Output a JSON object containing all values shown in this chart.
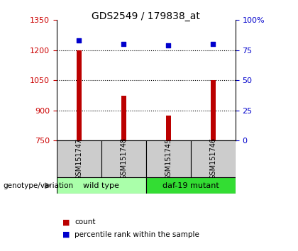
{
  "title": "GDS2549 / 179838_at",
  "samples": [
    "GSM151747",
    "GSM151748",
    "GSM151745",
    "GSM151746"
  ],
  "counts": [
    1200,
    975,
    875,
    1050
  ],
  "percentiles": [
    83,
    80,
    79,
    80
  ],
  "ylim_left": [
    750,
    1350
  ],
  "ylim_right": [
    0,
    100
  ],
  "yticks_left": [
    750,
    900,
    1050,
    1200,
    1350
  ],
  "yticks_right": [
    0,
    25,
    50,
    75,
    100
  ],
  "ytick_labels_right": [
    "0",
    "25",
    "50",
    "75",
    "100%"
  ],
  "bar_color": "#bb0000",
  "dot_color": "#0000cc",
  "bar_width": 0.12,
  "groups": [
    {
      "label": "wild type",
      "indices": [
        0,
        1
      ],
      "color": "#aaffaa"
    },
    {
      "label": "daf-19 mutant",
      "indices": [
        2,
        3
      ],
      "color": "#33dd33"
    }
  ],
  "group_label": "genotype/variation",
  "legend_count_label": "count",
  "legend_pct_label": "percentile rank within the sample",
  "bg_sample_box": "#cccccc",
  "left_axis_color": "#cc0000",
  "right_axis_color": "#0000cc",
  "title_fontsize": 10,
  "tick_fontsize": 8,
  "label_fontsize": 7.5
}
